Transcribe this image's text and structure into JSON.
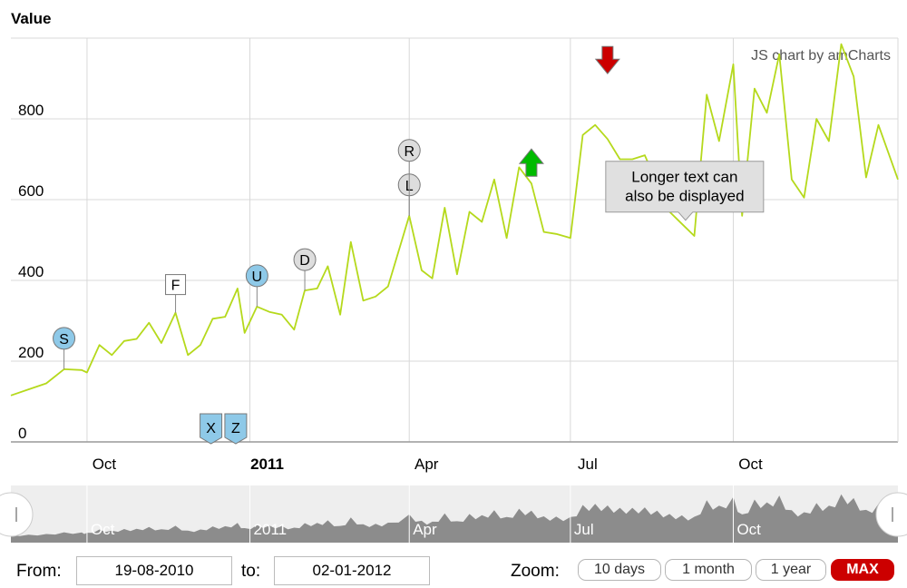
{
  "chart_data": {
    "type": "line",
    "ylabel": "Value",
    "credit": "JS chart by amCharts",
    "y_ticks": [
      0,
      200,
      400,
      600,
      800
    ],
    "ylim": [
      0,
      1000
    ],
    "x_range": [
      "2010-08-19",
      "2012-01-02"
    ],
    "x_ticks": [
      {
        "date": "2010-10-01",
        "label": "Oct",
        "bold": false
      },
      {
        "date": "2011-01-01",
        "label": "2011",
        "bold": true
      },
      {
        "date": "2011-04-01",
        "label": "Apr",
        "bold": false
      },
      {
        "date": "2011-07-01",
        "label": "Jul",
        "bold": false
      },
      {
        "date": "2011-10-01",
        "label": "Oct",
        "bold": false
      }
    ],
    "line_color": "#b5d91c",
    "points": [
      [
        "2010-08-19",
        115
      ],
      [
        "2010-08-29",
        130
      ],
      [
        "2010-09-08",
        145
      ],
      [
        "2010-09-18",
        180
      ],
      [
        "2010-09-28",
        178
      ],
      [
        "2010-10-01",
        172
      ],
      [
        "2010-10-08",
        240
      ],
      [
        "2010-10-15",
        215
      ],
      [
        "2010-10-22",
        250
      ],
      [
        "2010-10-29",
        255
      ],
      [
        "2010-11-05",
        295
      ],
      [
        "2010-11-12",
        245
      ],
      [
        "2010-11-20",
        320
      ],
      [
        "2010-11-27",
        215
      ],
      [
        "2010-12-04",
        240
      ],
      [
        "2010-12-11",
        305
      ],
      [
        "2010-12-18",
        310
      ],
      [
        "2010-12-25",
        380
      ],
      [
        "2010-12-29",
        270
      ],
      [
        "2011-01-05",
        335
      ],
      [
        "2011-01-12",
        322
      ],
      [
        "2011-01-19",
        315
      ],
      [
        "2011-01-26",
        278
      ],
      [
        "2011-02-01",
        375
      ],
      [
        "2011-02-08",
        380
      ],
      [
        "2011-02-14",
        435
      ],
      [
        "2011-02-21",
        315
      ],
      [
        "2011-02-27",
        495
      ],
      [
        "2011-03-06",
        350
      ],
      [
        "2011-03-13",
        360
      ],
      [
        "2011-03-20",
        385
      ],
      [
        "2011-04-01",
        560
      ],
      [
        "2011-04-08",
        425
      ],
      [
        "2011-04-14",
        405
      ],
      [
        "2011-04-21",
        580
      ],
      [
        "2011-04-28",
        415
      ],
      [
        "2011-05-05",
        570
      ],
      [
        "2011-05-12",
        545
      ],
      [
        "2011-05-19",
        650
      ],
      [
        "2011-05-26",
        505
      ],
      [
        "2011-06-02",
        680
      ],
      [
        "2011-06-09",
        640
      ],
      [
        "2011-06-16",
        520
      ],
      [
        "2011-06-23",
        515
      ],
      [
        "2011-07-01",
        505
      ],
      [
        "2011-07-08",
        760
      ],
      [
        "2011-07-15",
        785
      ],
      [
        "2011-07-22",
        750
      ],
      [
        "2011-07-29",
        700
      ],
      [
        "2011-08-05",
        700
      ],
      [
        "2011-08-12",
        710
      ],
      [
        "2011-08-19",
        640
      ],
      [
        "2011-08-26",
        570
      ],
      [
        "2011-09-02",
        540
      ],
      [
        "2011-09-09",
        510
      ],
      [
        "2011-09-16",
        860
      ],
      [
        "2011-09-23",
        745
      ],
      [
        "2011-10-01",
        935
      ],
      [
        "2011-10-06",
        560
      ],
      [
        "2011-10-13",
        875
      ],
      [
        "2011-10-20",
        815
      ],
      [
        "2011-10-27",
        960
      ],
      [
        "2011-11-03",
        650
      ],
      [
        "2011-11-10",
        605
      ],
      [
        "2011-11-17",
        800
      ],
      [
        "2011-11-24",
        745
      ],
      [
        "2011-12-01",
        985
      ],
      [
        "2011-12-08",
        905
      ],
      [
        "2011-12-15",
        655
      ],
      [
        "2011-12-22",
        785
      ],
      [
        "2012-01-02",
        650
      ]
    ],
    "events": [
      {
        "date": "2010-09-18",
        "value": 180,
        "shape": "circle",
        "text": "S",
        "color": "#8ec9e8"
      },
      {
        "date": "2010-11-20",
        "value": 320,
        "shape": "square",
        "text": "F",
        "color": "#ffffff"
      },
      {
        "date": "2011-01-05",
        "value": 335,
        "shape": "circle",
        "text": "U",
        "color": "#8ec9e8"
      },
      {
        "date": "2011-02-01",
        "value": 375,
        "shape": "circle",
        "text": "D",
        "color": "#dddddd"
      },
      {
        "date": "2011-04-01",
        "value": 560,
        "shape": "circle",
        "text": "L",
        "color": "#dddddd"
      },
      {
        "date": "2011-04-01",
        "value": 560,
        "shape": "circle",
        "text": "R",
        "color": "#dddddd",
        "stack": 1
      },
      {
        "date": "2011-06-09",
        "value": 640,
        "shape": "arrow-up",
        "text": "",
        "color": "#00bb00"
      },
      {
        "date": "2011-07-22",
        "value": 750,
        "shape": "arrow-down",
        "text": "",
        "color": "#cc0000"
      },
      {
        "date": "2010-12-10",
        "value": 0,
        "shape": "flag-bottom",
        "text": "X",
        "color": "#8ec9e8"
      },
      {
        "date": "2010-12-24",
        "value": 0,
        "shape": "flag-bottom",
        "text": "Z",
        "color": "#8ec9e8"
      }
    ],
    "balloon": {
      "lines": [
        "Longer text can",
        "also be displayed"
      ],
      "date": "2011-09-02",
      "value": 540
    },
    "grid": true,
    "scrollbar_labels": [
      "Oct",
      "2011",
      "Apr",
      "Jul",
      "Oct"
    ]
  },
  "controls": {
    "from_label": "From:",
    "to_label": "to:",
    "from_value": "19-08-2010",
    "to_value": "02-01-2012",
    "zoom_label": "Zoom:",
    "zoom_options": [
      "10 days",
      "1 month",
      "1 year",
      "MAX"
    ],
    "zoom_active": "MAX"
  }
}
